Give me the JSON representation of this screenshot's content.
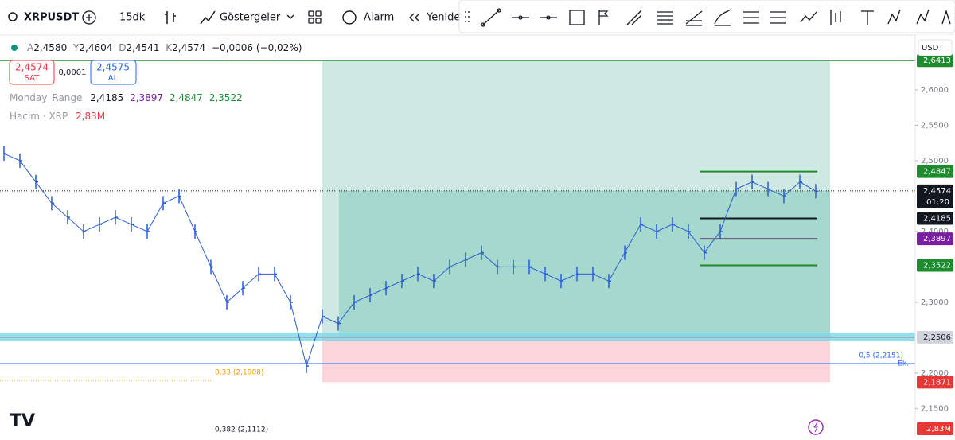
{
  "toolbar": {
    "symbol": "XRPUSDT",
    "interval": "15dk",
    "indicators": "Göstergeler",
    "alert": "Alarm",
    "replay": "Yenide"
  },
  "legend": {
    "open_key": "A",
    "open": "2,4580",
    "high_key": "Y",
    "high": "2,4604",
    "low_key": "D",
    "low": "2,4541",
    "close_key": "K",
    "close": "2,4574",
    "change": "−0,0006 (−0,02%)"
  },
  "trade": {
    "sell": "2,4574",
    "sell_label": "SAT",
    "spread": "0,0001",
    "buy": "2,4575",
    "buy_label": "AL"
  },
  "indicators": [
    {
      "name": "Monday_Range",
      "values": [
        "2,4185",
        "2,3897",
        "2,4847",
        "2,3522"
      ]
    },
    {
      "name": "Hacim · XRP",
      "values": [
        "2,83M"
      ]
    }
  ],
  "price_axis": {
    "currency": "USDT",
    "ylim": [
      2.11,
      2.6775
    ],
    "ticks": [
      {
        "value": 2.6,
        "label": "2,6000"
      },
      {
        "value": 2.55,
        "label": "2,5500"
      },
      {
        "value": 2.5,
        "label": "2,5000"
      },
      {
        "value": 2.4,
        "label": "2,4000"
      },
      {
        "value": 2.3,
        "label": "2,3000"
      },
      {
        "value": 2.2,
        "label": "2,2000"
      },
      {
        "value": 2.15,
        "label": "2,1500"
      }
    ],
    "labels": [
      {
        "value": 2.6413,
        "label": "2,6413",
        "color": "#1e8c2e"
      },
      {
        "value": 2.4847,
        "label": "2,4847",
        "color": "#1e8c2e"
      },
      {
        "value": 2.4574,
        "label": "2,4574",
        "color": "#131722"
      },
      {
        "value": 2.4185,
        "label": "2,4185",
        "color": "#131722"
      },
      {
        "value": 2.3897,
        "label": "2,3897",
        "color": "#7b1fa2"
      },
      {
        "value": 2.3522,
        "label": "2,3522",
        "color": "#1e8c2e"
      },
      {
        "value": 2.2506,
        "label": "2,2506",
        "color": "#d1d4dc"
      },
      {
        "value": 2.1871,
        "label": "2,1871",
        "color": "#e53935"
      }
    ],
    "volume_label": "2,83M",
    "countdown": "01:20"
  },
  "chart": {
    "type": "ohlc",
    "closes": [
      2.51,
      2.5,
      2.47,
      2.44,
      2.42,
      2.4,
      2.41,
      2.42,
      2.41,
      2.4,
      2.44,
      2.45,
      2.4,
      2.35,
      2.3,
      2.32,
      2.34,
      2.34,
      2.3,
      2.21,
      2.28,
      2.27,
      2.3,
      2.31,
      2.32,
      2.33,
      2.34,
      2.33,
      2.35,
      2.36,
      2.37,
      2.35,
      2.35,
      2.35,
      2.34,
      2.33,
      2.34,
      2.34,
      2.33,
      2.37,
      2.41,
      2.4,
      2.41,
      2.4,
      2.37,
      2.4,
      2.46,
      2.47,
      2.46,
      2.45,
      2.47,
      2.457
    ]
  },
  "annotations": {
    "fib_05": "0,5 (2,2151)",
    "fib_ext": "Ek.",
    "fib_033": "0,33 (2,1908)",
    "fib_0382": "0,382 (2,1112)"
  }
}
